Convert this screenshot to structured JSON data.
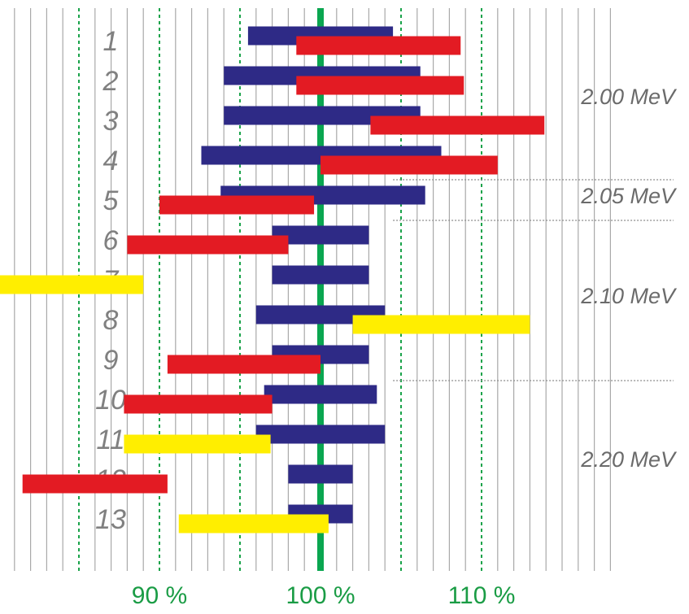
{
  "chart_data": {
    "type": "bar",
    "orientation": "horizontal-range",
    "x_ticks": [
      {
        "value": 90,
        "label": "90 %"
      },
      {
        "value": 100,
        "label": "100 %"
      },
      {
        "value": 110,
        "label": "110 %"
      }
    ],
    "reference_line": 100,
    "dotted_lines_at": [
      85,
      90,
      95,
      100,
      105,
      110
    ],
    "grid": "vertical lines every 1 %",
    "xlim": [
      80,
      118
    ],
    "rows": [
      {
        "label": "1",
        "blue": [
          95.5,
          104.5
        ],
        "bar": {
          "color": "red",
          "range": [
            98.5,
            108.7
          ]
        }
      },
      {
        "label": "2",
        "blue": [
          94.0,
          106.2
        ],
        "bar": {
          "color": "red",
          "range": [
            98.5,
            108.9
          ]
        }
      },
      {
        "label": "3",
        "blue": [
          94.0,
          106.2
        ],
        "bar": {
          "color": "red",
          "range": [
            103.1,
            113.9
          ]
        }
      },
      {
        "label": "4",
        "blue": [
          92.6,
          107.5
        ],
        "bar": {
          "color": "red",
          "range": [
            100.0,
            111.0
          ]
        }
      },
      {
        "label": "5",
        "blue": [
          93.8,
          106.5
        ],
        "bar": {
          "color": "red",
          "range": [
            90.0,
            99.6
          ]
        }
      },
      {
        "label": "6",
        "blue": [
          97.0,
          103.0
        ],
        "bar": {
          "color": "red",
          "range": [
            88.0,
            98.0
          ]
        }
      },
      {
        "label": "7",
        "blue": [
          97.0,
          103.0
        ],
        "bar": {
          "color": "yellow",
          "range": [
            80.0,
            89.0
          ]
        }
      },
      {
        "label": "8",
        "blue": [
          96.0,
          104.0
        ],
        "bar": {
          "color": "yellow",
          "range": [
            102.0,
            113.0
          ]
        }
      },
      {
        "label": "9",
        "blue": [
          97.0,
          103.0
        ],
        "bar": {
          "color": "red",
          "range": [
            90.5,
            100.0
          ]
        }
      },
      {
        "label": "10",
        "blue": [
          96.5,
          103.5
        ],
        "bar": {
          "color": "red",
          "range": [
            87.8,
            97.0
          ]
        }
      },
      {
        "label": "11",
        "blue": [
          96.0,
          104.0
        ],
        "bar": {
          "color": "yellow",
          "range": [
            87.8,
            96.9
          ]
        }
      },
      {
        "label": "12",
        "blue": [
          98.0,
          102.0
        ],
        "bar": {
          "color": "red",
          "range": [
            81.5,
            90.5
          ]
        }
      },
      {
        "label": "13",
        "blue": [
          98.0,
          102.0
        ],
        "bar": {
          "color": "yellow",
          "range": [
            91.2,
            100.5
          ]
        }
      }
    ],
    "energy_groups": [
      {
        "label": "2.00 MeV",
        "rows": [
          "1",
          "2",
          "3",
          "4"
        ]
      },
      {
        "label": "2.05 MeV",
        "rows": [
          "5",
          "6"
        ]
      },
      {
        "label": "2.10 MeV",
        "rows": [
          "7",
          "8",
          "9"
        ]
      },
      {
        "label": "2.20 MeV",
        "rows": [
          "10",
          "11",
          "12",
          "13"
        ]
      }
    ],
    "colors": {
      "blue": "#2e2a86",
      "red": "#e31b23",
      "yellow": "#ffee00",
      "reference": "#0aa650",
      "grid": "#a9a9a9",
      "dotted": "#1aa34a",
      "separator": "#8c8c8c"
    },
    "title": "",
    "xlabel": "",
    "ylabel": ""
  }
}
